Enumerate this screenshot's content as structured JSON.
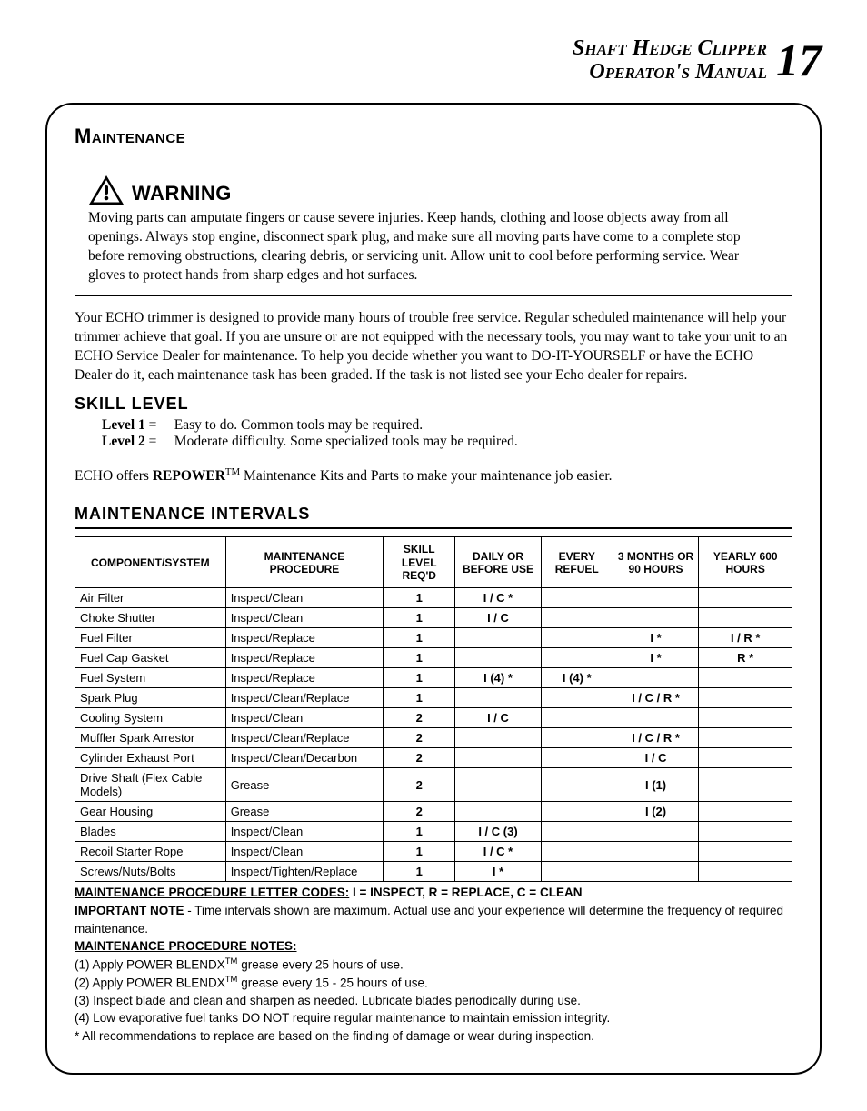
{
  "header": {
    "line1": "Shaft Hedge Clipper",
    "line2": "Operator's Manual",
    "page_number": "17"
  },
  "section_title": "Maintenance",
  "warning": {
    "label": "WARNING",
    "text": "Moving parts can amputate fingers or cause severe injuries.  Keep hands, clothing and loose objects away from all openings.  Always stop engine, disconnect spark plug, and make sure all moving parts have come to a complete stop before removing obstructions, clearing debris, or servicing unit. Allow unit to cool before performing service.  Wear gloves to protect hands from sharp edges and hot surfaces."
  },
  "intro_para": "Your ECHO trimmer is designed to provide many hours of trouble free service. Regular scheduled maintenance will help your trimmer achieve that goal. If you are unsure or are not equipped with the necessary tools, you may want to take your unit to an ECHO Service Dealer for maintenance.  To help you decide whether you want to DO-IT-YOURSELF or have the ECHO Dealer do it, each maintenance task has been graded. If the task is not listed see your Echo dealer for repairs.",
  "skill_level": {
    "heading": "SKILL LEVEL",
    "level1_label": "Level 1",
    "level1_text": "Easy to do. Common tools may be required.",
    "level2_label": "Level 2",
    "level2_text": "Moderate difficulty. Some specialized tools may be required."
  },
  "repower": {
    "prefix": "ECHO offers ",
    "brand": "REPOWER",
    "tm": "TM",
    "suffix": " Maintenance Kits and Parts to make your maintenance job easier."
  },
  "maint_intervals_heading": "MAINTENANCE INTERVALS",
  "table": {
    "headers": [
      "COMPONENT/SYSTEM",
      "MAINTENANCE PROCEDURE",
      "SKILL LEVEL REQ'D",
      "DAILY OR BEFORE USE",
      "EVERY REFUEL",
      "3 MONTHS OR 90 HOURS",
      "YEARLY 600 HOURS"
    ],
    "col_widths": [
      "21%",
      "22%",
      "10%",
      "12%",
      "10%",
      "12%",
      "13%"
    ],
    "rows": [
      [
        "Air Filter",
        "Inspect/Clean",
        "1",
        "I / C *",
        "",
        "",
        ""
      ],
      [
        "Choke Shutter",
        "Inspect/Clean",
        "1",
        "I / C",
        "",
        "",
        ""
      ],
      [
        "Fuel Filter",
        "Inspect/Replace",
        "1",
        "",
        "",
        "I *",
        "I / R *"
      ],
      [
        "Fuel Cap Gasket",
        "Inspect/Replace",
        "1",
        "",
        "",
        "I *",
        "R *"
      ],
      [
        "Fuel System",
        "Inspect/Replace",
        "1",
        "I (4) *",
        "I (4) *",
        "",
        ""
      ],
      [
        "Spark Plug",
        "Inspect/Clean/Replace",
        "1",
        "",
        "",
        "I / C / R *",
        ""
      ],
      [
        "Cooling System",
        "Inspect/Clean",
        "2",
        "I / C",
        "",
        "",
        ""
      ],
      [
        "Muffler Spark Arrestor",
        "Inspect/Clean/Replace",
        "2",
        "",
        "",
        "I / C / R *",
        ""
      ],
      [
        "Cylinder Exhaust Port",
        "Inspect/Clean/Decarbon",
        "2",
        "",
        "",
        "I / C",
        ""
      ],
      [
        "Drive Shaft (Flex Cable Models)",
        "Grease",
        "2",
        "",
        "",
        "I (1)",
        ""
      ],
      [
        "Gear Housing",
        "Grease",
        "2",
        "",
        "",
        "I (2)",
        ""
      ],
      [
        "Blades",
        "Inspect/Clean",
        "1",
        "I / C (3)",
        "",
        "",
        ""
      ],
      [
        "Recoil Starter Rope",
        "Inspect/Clean",
        "1",
        "I / C  *",
        "",
        "",
        ""
      ],
      [
        "Screws/Nuts/Bolts",
        "Inspect/Tighten/Replace",
        "1",
        "I   *",
        "",
        "",
        ""
      ]
    ]
  },
  "notes": {
    "codes_label": "MAINTENANCE PROCEDURE LETTER CODES:",
    "codes_text": "  I = INSPECT,  R = REPLACE,  C = CLEAN",
    "important_label": "IMPORTANT NOTE ",
    "important_text": "- Time intervals shown are maximum. Actual use and your experience will determine the frequency of required maintenance.",
    "proc_notes_label": "MAINTENANCE PROCEDURE NOTES:",
    "n1_pre": "(1) Apply  POWER BLENDX",
    "n1_post": " grease every 25 hours of use.",
    "n2_pre": "(2) Apply  POWER BLENDX",
    "n2_post": " grease every 15 - 25 hours of use.",
    "n3": "(3)  Inspect blade and clean and sharpen as needed. Lubricate blades periodically during use.",
    "n4": "(4) Low evaporative fuel tanks DO NOT require regular maintenance to maintain emission integrity.",
    "n5": "* All recommendations to replace are based on the finding of damage or wear during inspection.",
    "tm": "TM"
  }
}
